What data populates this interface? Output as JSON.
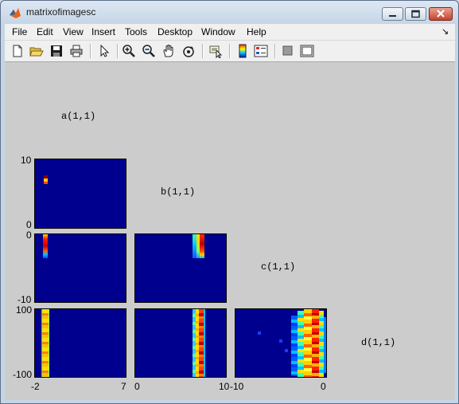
{
  "window": {
    "title": "matrixofimagesc",
    "controls": [
      "minimize",
      "maximize",
      "close"
    ]
  },
  "menu": [
    "File",
    "Edit",
    "View",
    "Insert",
    "Tools",
    "Desktop",
    "Window",
    "Help"
  ],
  "menu_dock_arrow": "↘",
  "toolbar": [
    "new-figure-icon",
    "open-file-icon",
    "save-icon",
    "print-icon",
    "edit-plot-arrow-icon",
    "zoom-in-icon",
    "zoom-out-icon",
    "pan-hand-icon",
    "rotate-3d-icon",
    "data-cursor-icon",
    "colorbar-icon",
    "legend-icon",
    "hide-plot-tools-icon",
    "show-plot-tools-icon"
  ],
  "figure": {
    "labels": {
      "a": "a(1,1)",
      "b": "b(1,1)",
      "c": "c(1,1)",
      "d": "d(1,1)"
    },
    "ticks": {
      "row1_top": "10",
      "row1_bottom": "0",
      "row2_top": "0",
      "row2_bottom": "-10",
      "row3_top": "100",
      "row3_bottom": "-100",
      "col1_left": "-2",
      "col1_right": "7",
      "col2_left": "0",
      "col2_right": "10",
      "col3_left": "-10",
      "col3_right": "0"
    },
    "colors": {
      "background": "#00008f",
      "figure": "#cccccc"
    }
  }
}
